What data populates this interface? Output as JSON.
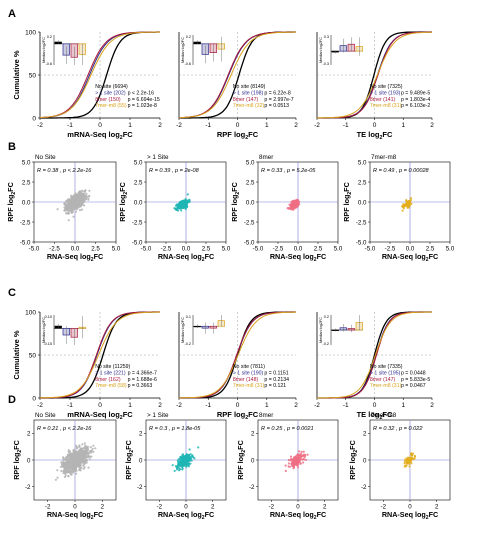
{
  "figure": {
    "panel_letters": [
      "A",
      "B",
      "C",
      "D"
    ],
    "colors": {
      "no_site": "#000000",
      "gt1_site": "#2b2b8c",
      "mer8": "#a8173a",
      "mer7": "#d9a21b",
      "scatter_no_site": "#b4b4b4",
      "scatter_gt1": "#1fb5b5",
      "scatter_8mer": "#ee6f84",
      "scatter_7mer": "#e3ad1c",
      "refline": "#7e7ed6"
    },
    "cdf_ylabel": "Cumulative %",
    "inset_ylabel": "Median log2FC"
  },
  "chart_data": [
    {
      "panel": "A",
      "type": "line",
      "xlabel": "mRNA-Seq log2FC",
      "ylabel": "Cumulative %",
      "xlim": [
        -2,
        2
      ],
      "ylim": [
        0,
        100
      ],
      "xticks": [
        "-2",
        "-1",
        "0",
        "1",
        "2"
      ],
      "yticks": [
        "0",
        "50",
        "100"
      ],
      "series": [
        {
          "name": "No site (6694)",
          "mu": 0.22,
          "s": 0.22,
          "legend": "No site (6694)",
          "pval": ""
        },
        {
          "name": "> 1 site (202)",
          "mu": -0.35,
          "s": 0.3,
          "legend": "> 1 site (202)",
          "pval": "p < 2.2e-16"
        },
        {
          "name": "8mer (150)",
          "mu": -0.4,
          "s": 0.3,
          "legend": "8mer (150)",
          "pval": "p = 6.694e-15"
        },
        {
          "name": "7mer-m8 (55)",
          "mu": -0.3,
          "s": 0.32,
          "legend": "7mer-m8 (55)",
          "pval": "p = 1.023e-8"
        }
      ],
      "inset": {
        "ymin": -0.6,
        "ymax": 0.25,
        "yticks": [
          "0.2",
          "-0.6"
        ],
        "values": [
          0.05,
          -0.32,
          -0.38,
          -0.3
        ],
        "err": [
          0.05,
          0.25,
          0.3,
          0.3
        ]
      }
    },
    {
      "panel": "A2",
      "type": "line",
      "xlabel": "RPF log2FC",
      "ylabel": "",
      "xlim": [
        -2,
        2
      ],
      "ylim": [
        0,
        100
      ],
      "xticks": [
        "-2",
        "-1",
        "0",
        "1",
        "2"
      ],
      "yticks": [],
      "series": [
        {
          "name": "No site (8149)",
          "mu": 0.05,
          "s": 0.22,
          "legend": "No site (8149)",
          "pval": ""
        },
        {
          "name": "> 1 site (198)",
          "mu": -0.3,
          "s": 0.3,
          "legend": "> 1 site (198)",
          "pval": "p = 6.22e-8"
        },
        {
          "name": "8mer (147)",
          "mu": -0.32,
          "s": 0.3,
          "legend": "8mer (147)",
          "pval": "p = 2.997e-7"
        },
        {
          "name": "7mer-m8 (32)",
          "mu": -0.22,
          "s": 0.32,
          "legend": "7mer-m8 (32)",
          "pval": "p = 0.0513"
        }
      ],
      "inset": {
        "ymin": -0.6,
        "ymax": 0.25,
        "yticks": [
          "0.2",
          "-0.6"
        ],
        "values": [
          0.05,
          -0.3,
          -0.25,
          -0.15
        ],
        "err": [
          0.05,
          0.25,
          0.25,
          0.35
        ]
      }
    },
    {
      "panel": "A3",
      "type": "line",
      "xlabel": "TE log2FC",
      "ylabel": "",
      "xlim": [
        -2,
        2
      ],
      "ylim": [
        0,
        100
      ],
      "xticks": [
        "-2",
        "-1",
        "0",
        "1",
        "2"
      ],
      "yticks": [],
      "series": [
        {
          "name": "No site (7325)",
          "mu": -0.02,
          "s": 0.2,
          "legend": "No site (7325)",
          "pval": ""
        },
        {
          "name": "> 1 site (193)",
          "mu": 0.1,
          "s": 0.25,
          "legend": "> 1 site (193)",
          "pval": "p = 9.489e-5"
        },
        {
          "name": "8mer (141)",
          "mu": 0.12,
          "s": 0.25,
          "legend": "8mer (141)",
          "pval": "p = 1.803e-4"
        },
        {
          "name": "7mer-m8 (31)",
          "mu": 0.1,
          "s": 0.3,
          "legend": "7mer-m8 (31)",
          "pval": "p = 6.103e-2"
        }
      ],
      "inset": {
        "ymin": -0.3,
        "ymax": 0.35,
        "yticks": [
          "0.3",
          "-0.3"
        ],
        "values": [
          -0.02,
          0.12,
          0.15,
          0.1
        ],
        "err": [
          0.03,
          0.15,
          0.15,
          0.2
        ]
      }
    },
    {
      "panel": "B",
      "type": "scatter",
      "titles": [
        "No Site",
        "> 1 Site",
        "8mer",
        "7mer-m8"
      ],
      "stats": [
        "R = 0.38 , p < 2.2e-16",
        "R = 0.39 , p = 2e-08",
        "R = 0.33 , p = 5.2e-05",
        "R = 0.49 , p = 0.00028"
      ],
      "xlabel": "RNA-Seq log2FC",
      "ylabel": "RPF log2FC",
      "xlim": [
        -5,
        5
      ],
      "ylim": [
        -5,
        5
      ],
      "xticks": [
        "-5.0",
        "-2.5",
        "0.0",
        "2.5",
        "5.0"
      ],
      "yticks": [
        "5.0",
        "2.5",
        "0.0",
        "-2.5",
        "-5.0"
      ],
      "counts": [
        800,
        200,
        150,
        55
      ],
      "spread": [
        0.55,
        0.35,
        0.33,
        0.3
      ],
      "cx": [
        0.1,
        -0.35,
        -0.4,
        -0.3
      ],
      "cy": [
        0.0,
        -0.3,
        -0.3,
        -0.2
      ]
    },
    {
      "panel": "C",
      "type": "line",
      "xlabel": "mRNA-Seq log2FC",
      "ylabel": "Cumulative %",
      "xlim": [
        -2,
        2
      ],
      "ylim": [
        0,
        100
      ],
      "xticks": [
        "-2",
        "-1",
        "0",
        "1",
        "2"
      ],
      "yticks": [
        "0",
        "50",
        "100"
      ],
      "series": [
        {
          "name": "No site (11259)",
          "mu": 0.1,
          "s": 0.22,
          "legend": "No site (11259)",
          "pval": ""
        },
        {
          "name": "> 1 site (221)",
          "mu": -0.1,
          "s": 0.25,
          "legend": "> 1 site (221)",
          "pval": "p = 4.366e-7"
        },
        {
          "name": "8mer (162)",
          "mu": -0.12,
          "s": 0.25,
          "legend": "8mer (162)",
          "pval": "p = 1.688e-6"
        },
        {
          "name": "7mer-m8 (58)",
          "mu": -0.05,
          "s": 0.3,
          "legend": "7mer-m8 (58)",
          "pval": "p = 0.3663"
        }
      ],
      "inset": {
        "ymin": -0.15,
        "ymax": 0.12,
        "yticks": [
          "0.10",
          "-0.15"
        ],
        "values": [
          0.02,
          -0.06,
          -0.08,
          0.01
        ],
        "err": [
          0.02,
          0.08,
          0.08,
          0.1
        ]
      }
    },
    {
      "panel": "C2",
      "type": "line",
      "xlabel": "RPF log2FC",
      "ylabel": "",
      "xlim": [
        -2,
        2
      ],
      "ylim": [
        0,
        100
      ],
      "xticks": [
        "-2",
        "-1",
        "0",
        "1",
        "2"
      ],
      "yticks": [],
      "series": [
        {
          "name": "No site (7811)",
          "mu": 0.0,
          "s": 0.22,
          "legend": "No site (7811)",
          "pval": ""
        },
        {
          "name": "> 1 site (190)",
          "mu": -0.02,
          "s": 0.26,
          "legend": "> 1 site (190)",
          "pval": "p = 0.1151"
        },
        {
          "name": "8mer (148)",
          "mu": -0.03,
          "s": 0.26,
          "legend": "8mer (148)",
          "pval": "p = 0.2134"
        },
        {
          "name": "7mer-m8 (31)",
          "mu": 0.02,
          "s": 0.3,
          "legend": "7mer-m8 (31)",
          "pval": "p = 0.121"
        }
      ],
      "inset": {
        "ymin": -0.2,
        "ymax": 0.12,
        "yticks": [
          "0.1",
          "-0.2"
        ],
        "values": [
          0.0,
          -0.02,
          -0.02,
          0.06
        ],
        "err": [
          0.02,
          0.06,
          0.06,
          0.06
        ]
      }
    },
    {
      "panel": "C3",
      "type": "line",
      "xlabel": "TE log2FC",
      "ylabel": "",
      "xlim": [
        -2,
        2
      ],
      "ylim": [
        0,
        100
      ],
      "xticks": [
        "-2",
        "-1",
        "0",
        "1",
        "2"
      ],
      "yticks": [],
      "series": [
        {
          "name": "No site (7335)",
          "mu": 0.0,
          "s": 0.2,
          "legend": "No site (7335)",
          "pval": ""
        },
        {
          "name": "> 1 site (195)",
          "mu": 0.05,
          "s": 0.22,
          "legend": "> 1 site (195)",
          "pval": "p = 0.0448"
        },
        {
          "name": "8mer (147)",
          "mu": 0.07,
          "s": 0.22,
          "legend": "8mer (147)",
          "pval": "p = 5.833e-5"
        },
        {
          "name": "7mer-m8 (31)",
          "mu": 0.03,
          "s": 0.26,
          "legend": "7mer-m8 (31)",
          "pval": "p = 0.0467"
        }
      ],
      "inset": {
        "ymin": -0.2,
        "ymax": 0.2,
        "yticks": [
          "0.2",
          "-0.2"
        ],
        "values": [
          0.0,
          0.03,
          0.02,
          0.1
        ],
        "err": [
          0.02,
          0.05,
          0.05,
          0.1
        ]
      }
    },
    {
      "panel": "D",
      "type": "scatter",
      "titles": [
        "No Site",
        "> 1 Site",
        "8mer",
        "7mer-m8"
      ],
      "stats": [
        "R = 0.21 , p < 2.2e-16",
        "R = 0.3 , p = 1.8e-05",
        "R = 0.25 , p = 0.0021",
        "R = 0.32 , p = 0.022"
      ],
      "xlabel": "RNA-Seq log2FC",
      "ylabel": "RPF log2FC",
      "xlim": [
        -3,
        3
      ],
      "ylim": [
        -3,
        3
      ],
      "xticks": [
        "-2",
        "0",
        "2"
      ],
      "yticks": [
        "2",
        "0",
        "-2"
      ],
      "counts": [
        900,
        220,
        160,
        58
      ],
      "spread": [
        0.45,
        0.28,
        0.27,
        0.25
      ],
      "cx": [
        0.05,
        -0.1,
        -0.1,
        -0.05
      ],
      "cy": [
        0.0,
        -0.05,
        -0.05,
        0.0
      ]
    }
  ]
}
